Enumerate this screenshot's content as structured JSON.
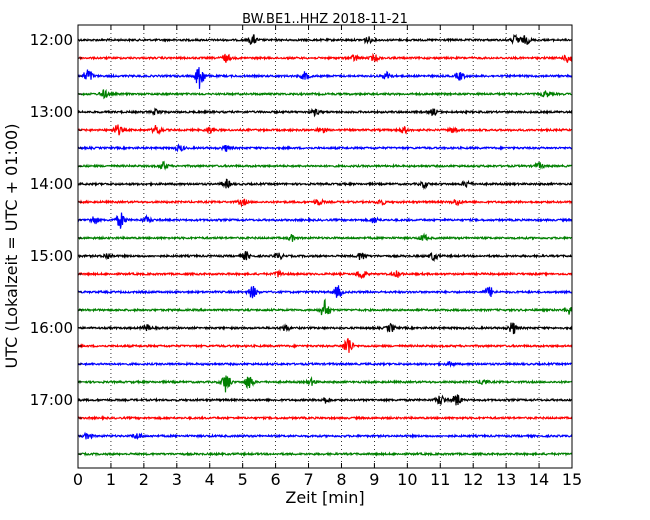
{
  "chart_data": {
    "type": "line",
    "title": "BW.BE1..HHZ 2018-11-21",
    "xlabel": "Zeit  [min]",
    "ylabel": "UTC (Lokalzeit = UTC + 01:00)",
    "xlim": [
      0,
      15
    ],
    "x_ticks": [
      "0",
      "1",
      "2",
      "3",
      "4",
      "5",
      "6",
      "7",
      "8",
      "9",
      "10",
      "11",
      "12",
      "13",
      "14",
      "15"
    ],
    "y_tick_labels": [
      "12:00",
      "13:00",
      "14:00",
      "15:00",
      "16:00",
      "17:00"
    ],
    "grid": "vertical dotted at each minute",
    "colors": [
      "#000000",
      "#ff0000",
      "#0000ff",
      "#008000"
    ],
    "traces": [
      {
        "start": "12:00",
        "color": "#000000",
        "events": [
          [
            5.3,
            5
          ],
          [
            8.8,
            3
          ],
          [
            13.3,
            5
          ],
          [
            13.6,
            4
          ]
        ]
      },
      {
        "start": "12:15",
        "color": "#ff0000",
        "events": [
          [
            4.5,
            4
          ],
          [
            8.4,
            3
          ],
          [
            9.0,
            3
          ],
          [
            14.9,
            5
          ]
        ]
      },
      {
        "start": "12:30",
        "color": "#0000ff",
        "events": [
          [
            0.3,
            7
          ],
          [
            3.7,
            14
          ],
          [
            6.9,
            4
          ],
          [
            9.4,
            4
          ],
          [
            11.6,
            4
          ]
        ]
      },
      {
        "start": "12:45",
        "color": "#008000",
        "events": [
          [
            0.8,
            4
          ],
          [
            14.2,
            3
          ]
        ]
      },
      {
        "start": "13:00",
        "color": "#000000",
        "events": [
          [
            2.4,
            3
          ],
          [
            7.2,
            3
          ],
          [
            10.8,
            3
          ]
        ]
      },
      {
        "start": "13:15",
        "color": "#ff0000",
        "events": [
          [
            1.2,
            5
          ],
          [
            2.4,
            5
          ],
          [
            4.0,
            3
          ],
          [
            7.4,
            3
          ],
          [
            9.9,
            3
          ],
          [
            11.4,
            3
          ]
        ]
      },
      {
        "start": "13:30",
        "color": "#0000ff",
        "events": [
          [
            3.1,
            3
          ],
          [
            4.5,
            3
          ]
        ]
      },
      {
        "start": "13:45",
        "color": "#008000",
        "events": [
          [
            2.6,
            4
          ],
          [
            14.0,
            3
          ]
        ]
      },
      {
        "start": "14:00",
        "color": "#000000",
        "events": [
          [
            4.5,
            4
          ],
          [
            10.5,
            3
          ],
          [
            11.8,
            3
          ]
        ]
      },
      {
        "start": "14:15",
        "color": "#ff0000",
        "events": [
          [
            5.0,
            3
          ],
          [
            7.3,
            3
          ],
          [
            9.2,
            3
          ],
          [
            11.5,
            3
          ]
        ]
      },
      {
        "start": "14:30",
        "color": "#0000ff",
        "events": [
          [
            0.5,
            4
          ],
          [
            1.3,
            8
          ],
          [
            2.1,
            3
          ],
          [
            9.0,
            3
          ]
        ]
      },
      {
        "start": "14:45",
        "color": "#008000",
        "events": [
          [
            6.5,
            3
          ],
          [
            10.5,
            3
          ]
        ]
      },
      {
        "start": "15:00",
        "color": "#000000",
        "events": [
          [
            0.9,
            3
          ],
          [
            5.1,
            4
          ],
          [
            6.1,
            3
          ],
          [
            8.6,
            4
          ],
          [
            10.8,
            4
          ]
        ]
      },
      {
        "start": "15:15",
        "color": "#ff0000",
        "events": [
          [
            6.1,
            3
          ],
          [
            8.6,
            5
          ],
          [
            9.7,
            3
          ]
        ]
      },
      {
        "start": "15:30",
        "color": "#0000ff",
        "events": [
          [
            5.3,
            6
          ],
          [
            7.9,
            6
          ],
          [
            12.5,
            5
          ]
        ]
      },
      {
        "start": "15:45",
        "color": "#008000",
        "events": [
          [
            7.5,
            10
          ],
          [
            14.9,
            4
          ]
        ]
      },
      {
        "start": "16:00",
        "color": "#000000",
        "events": [
          [
            2.1,
            3
          ],
          [
            6.3,
            3
          ],
          [
            9.5,
            4
          ],
          [
            13.2,
            6
          ]
        ]
      },
      {
        "start": "16:15",
        "color": "#ff0000",
        "events": [
          [
            8.2,
            10
          ]
        ]
      },
      {
        "start": "16:30",
        "color": "#0000ff",
        "events": [
          [
            11.3,
            2
          ]
        ]
      },
      {
        "start": "16:45",
        "color": "#008000",
        "events": [
          [
            4.5,
            10
          ],
          [
            5.2,
            7
          ],
          [
            7.1,
            3
          ],
          [
            12.3,
            3
          ]
        ]
      },
      {
        "start": "17:00",
        "color": "#000000",
        "events": [
          [
            7.5,
            3
          ],
          [
            11.0,
            5
          ],
          [
            11.5,
            6
          ]
        ]
      },
      {
        "start": "17:15",
        "color": "#ff0000",
        "events": []
      },
      {
        "start": "17:30",
        "color": "#0000ff",
        "events": [
          [
            0.3,
            3
          ],
          [
            1.8,
            3
          ]
        ]
      },
      {
        "start": "17:45",
        "color": "#008000",
        "events": []
      }
    ]
  }
}
